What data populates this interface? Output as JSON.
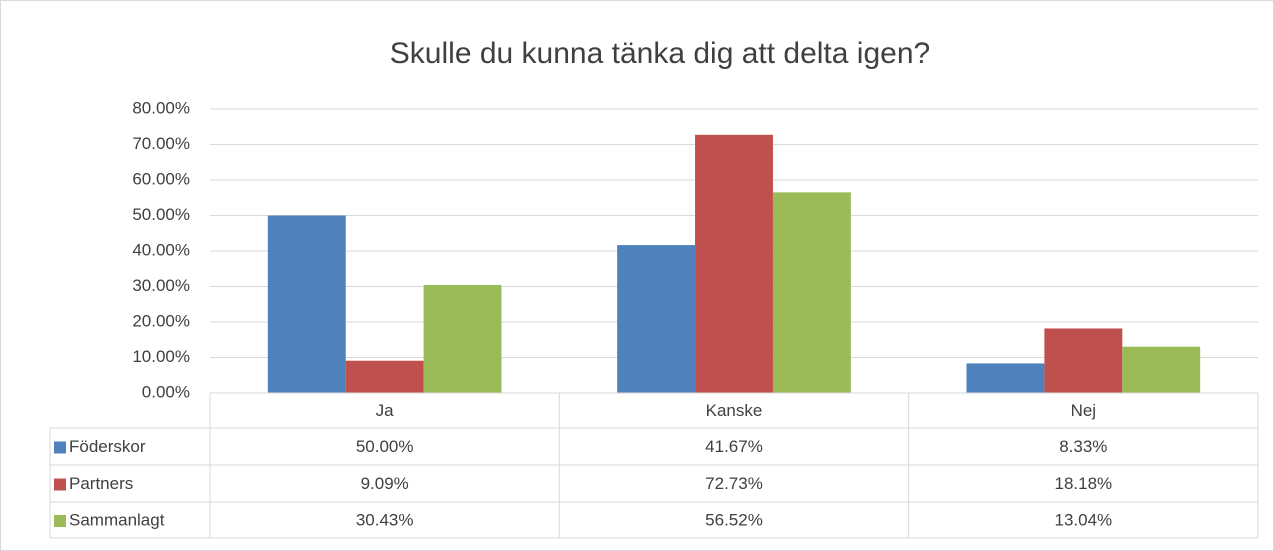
{
  "chart_data": {
    "type": "bar",
    "title": "Skulle du kunna tänka dig att delta igen?",
    "categories": [
      "Ja",
      "Kanske",
      "Nej"
    ],
    "series": [
      {
        "name": "Föderskor",
        "color": "#4f81bd",
        "values": [
          50.0,
          41.67,
          8.33
        ],
        "value_labels": [
          "50.00%",
          "41.67%",
          "8.33%"
        ]
      },
      {
        "name": "Partners",
        "color": "#c0504d",
        "values": [
          9.09,
          72.73,
          18.18
        ],
        "value_labels": [
          "9.09%",
          "72.73%",
          "18.18%"
        ]
      },
      {
        "name": "Sammanlagt",
        "color": "#9bbb59",
        "values": [
          30.43,
          56.52,
          13.04
        ],
        "value_labels": [
          "30.43%",
          "56.52%",
          "13.04%"
        ]
      }
    ],
    "ylim": [
      0,
      80
    ],
    "yticks": [
      {
        "value": 0,
        "label": "0.00%"
      },
      {
        "value": 10,
        "label": "10.00%"
      },
      {
        "value": 20,
        "label": "20.00%"
      },
      {
        "value": 30,
        "label": "30.00%"
      },
      {
        "value": 40,
        "label": "40.00%"
      },
      {
        "value": 50,
        "label": "50.00%"
      },
      {
        "value": 60,
        "label": "60.00%"
      },
      {
        "value": 70,
        "label": "70.00%"
      },
      {
        "value": 80,
        "label": "80.00%"
      }
    ],
    "grid": true
  }
}
